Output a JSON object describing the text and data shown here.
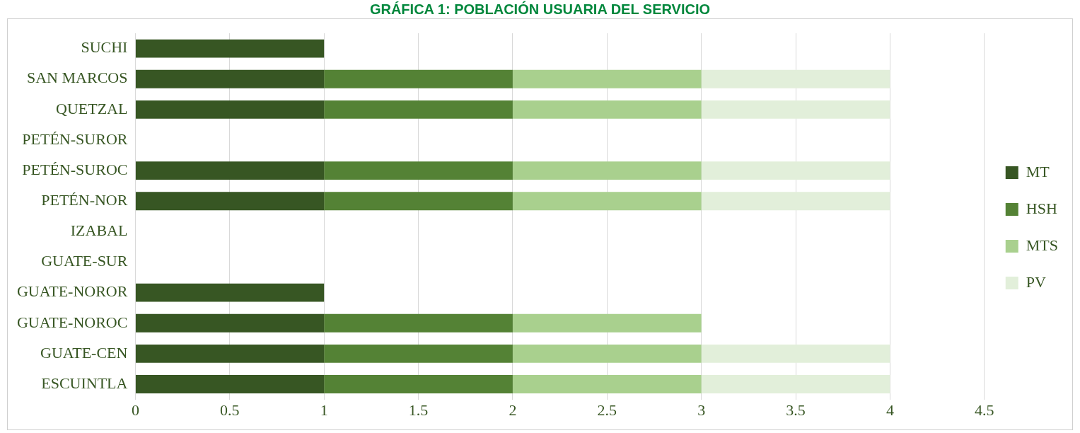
{
  "chart_data": {
    "type": "bar",
    "title": "GRÁFICA 1: POBLACIÓN USUARIA DEL SERVICIO",
    "orientation": "horizontal",
    "stacked": true,
    "categories": [
      "SUCHI",
      "SAN MARCOS",
      "QUETZAL",
      "PETÉN-SUROR",
      "PETÉN-SUROC",
      "PETÉN-NOR",
      "IZABAL",
      "GUATE-SUR",
      "GUATE-NOROR",
      "GUATE-NOROC",
      "GUATE-CEN",
      "ESCUINTLA"
    ],
    "series": [
      {
        "name": "MT",
        "color": "#375623",
        "values": [
          1,
          1,
          1,
          null,
          1,
          1,
          null,
          null,
          1,
          1,
          1,
          1
        ]
      },
      {
        "name": "HSH",
        "color": "#548235",
        "values": [
          null,
          1,
          1,
          null,
          1,
          1,
          null,
          null,
          null,
          1,
          1,
          1
        ]
      },
      {
        "name": "MTS",
        "color": "#a9d08e",
        "values": [
          null,
          1,
          1,
          null,
          1,
          1,
          null,
          null,
          null,
          1,
          1,
          1
        ]
      },
      {
        "name": "PV",
        "color": "#e2efda",
        "values": [
          null,
          1,
          1,
          null,
          1,
          1,
          null,
          null,
          null,
          null,
          1,
          1
        ]
      }
    ],
    "xlim": [
      0,
      4.5
    ],
    "xticks": [
      0,
      0.5,
      1,
      1.5,
      2,
      2.5,
      3,
      3.5,
      4,
      4.5
    ],
    "grid": "x",
    "legend": "right"
  }
}
